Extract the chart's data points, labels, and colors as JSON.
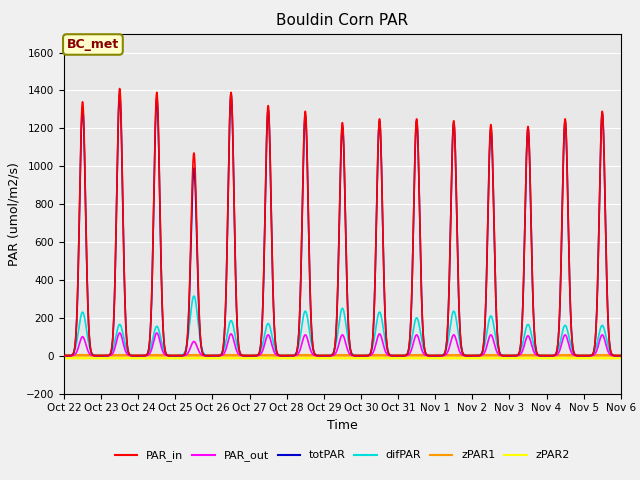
{
  "title": "Bouldin Corn PAR",
  "xlabel": "Time",
  "ylabel": "PAR (umol/m2/s)",
  "ylim": [
    -200,
    1700
  ],
  "yticks": [
    -200,
    0,
    200,
    400,
    600,
    800,
    1000,
    1200,
    1400,
    1600
  ],
  "annotation": "BC_met",
  "fig_bg_color": "#f0f0f0",
  "plot_bg_color": "#e8e8e8",
  "series": {
    "PAR_in": {
      "color": "#ff0000",
      "lw": 1.2
    },
    "PAR_out": {
      "color": "#ff00ff",
      "lw": 1.2
    },
    "totPAR": {
      "color": "#0000cc",
      "lw": 1.2
    },
    "difPAR": {
      "color": "#00dddd",
      "lw": 1.2
    },
    "zPAR1": {
      "color": "#ff9900",
      "lw": 2.0
    },
    "zPAR2": {
      "color": "#ffff00",
      "lw": 2.5
    }
  },
  "tick_labels": [
    "Oct 22",
    "Oct 23",
    "Oct 24",
    "Oct 25",
    "Oct 26",
    "Oct 27",
    "Oct 28",
    "Oct 29",
    "Oct 30",
    "Oct 31",
    "Nov 1",
    "Nov 2",
    "Nov 3",
    "Nov 4",
    "Nov 5",
    "Nov 6"
  ],
  "n_days": 15,
  "peaks_PAR_in": [
    1340,
    1410,
    1390,
    1070,
    1390,
    1320,
    1290,
    1230,
    1250,
    1250,
    1240,
    1220,
    1210,
    1250,
    1290
  ],
  "peaks_PAR_out": [
    100,
    120,
    120,
    75,
    115,
    110,
    110,
    110,
    115,
    110,
    110,
    110,
    105,
    110,
    110
  ],
  "peaks_totPAR": [
    1310,
    1380,
    1360,
    990,
    1380,
    1300,
    1270,
    1210,
    1240,
    1240,
    1230,
    1200,
    1200,
    1240,
    1280
  ],
  "peaks_difPAR": [
    230,
    165,
    155,
    315,
    185,
    170,
    235,
    250,
    230,
    200,
    235,
    210,
    165,
    160,
    160
  ],
  "peaks_zPAR1": [
    2,
    2,
    2,
    2,
    2,
    2,
    2,
    2,
    2,
    2,
    2,
    2,
    2,
    2,
    2
  ],
  "peaks_zPAR2": [
    -10,
    -10,
    -10,
    -10,
    -10,
    -10,
    -10,
    -10,
    -10,
    -10,
    -10,
    -10,
    -10,
    -10,
    -10
  ],
  "pulse_sigma": 0.08
}
